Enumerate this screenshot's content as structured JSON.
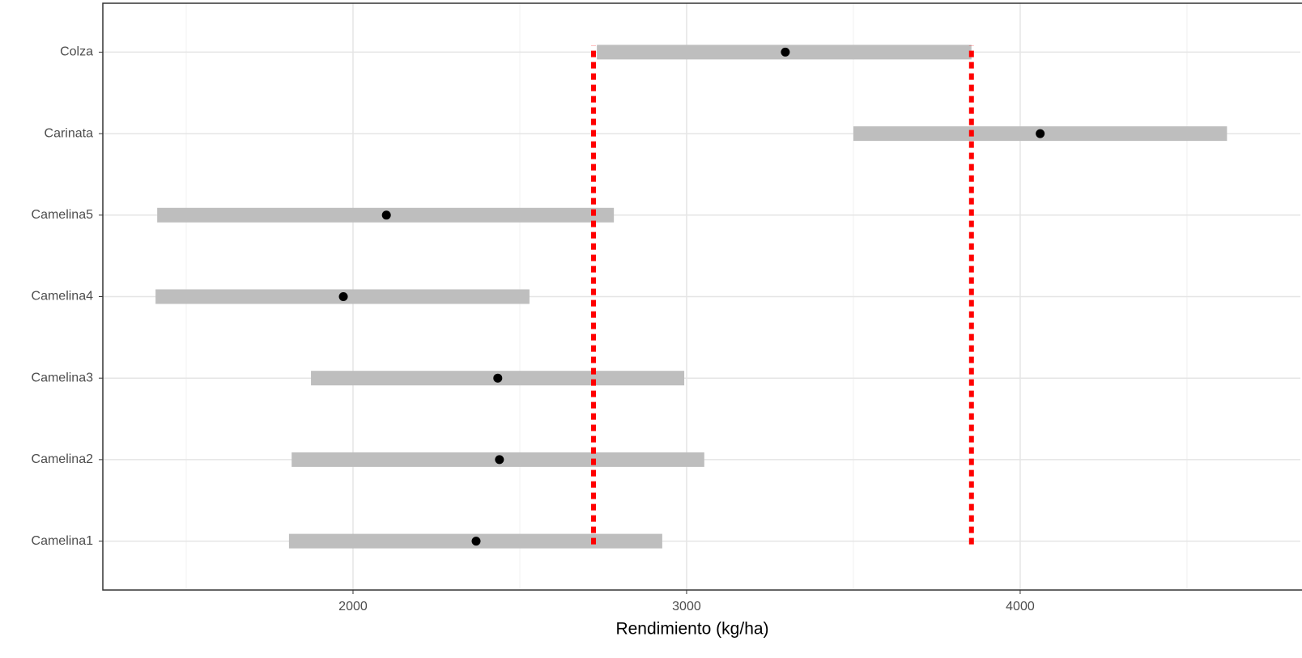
{
  "chart_data": {
    "type": "pointrange",
    "xlabel": "Rendimiento (kg/ha)",
    "categories": [
      "Camelina1",
      "Camelina2",
      "Camelina3",
      "Camelina4",
      "Camelina5",
      "Carinata",
      "Colza"
    ],
    "values": [
      2369,
      2439,
      2434,
      1971,
      2100,
      4060,
      3296
    ],
    "low": [
      1808,
      1816,
      1874,
      1408,
      1413,
      3500,
      2731
    ],
    "high": [
      2927,
      3053,
      2993,
      2529,
      2782,
      4620,
      3854
    ],
    "point_color": "#000000",
    "range_color": "#bebebe",
    "vlines": [
      2721,
      3854
    ],
    "vline_color": "#ff0000",
    "xlim": [
      1250,
      4840
    ],
    "xticks": [
      2000,
      3000,
      4000
    ],
    "minor_xticks": [
      1500,
      2500,
      3500,
      4500
    ],
    "grid": true
  }
}
